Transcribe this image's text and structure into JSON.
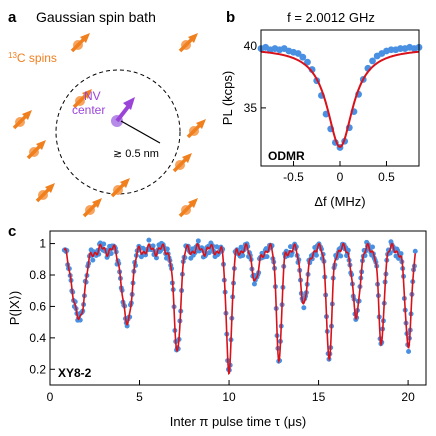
{
  "panels": {
    "a": {
      "letter": "a",
      "title": "Gaussian spin bath",
      "spins_label": "13C spins",
      "spins_label_sup": "13",
      "spins_label_rest": "C spins",
      "nv_label_line1": "NV",
      "nv_label_line2": "center",
      "radius_label": "≳ 0.5 nm",
      "colors": {
        "spin": "#F07F1E",
        "nv": "#9B45D8"
      }
    },
    "b": {
      "letter": "b",
      "annotation": "ODMR"
    },
    "c": {
      "letter": "c",
      "annotation": "XY8-2"
    }
  },
  "chart_data": [
    {
      "panel": "b",
      "type": "scatter",
      "title": "f = 2.0012 GHz",
      "xlabel": "Δf (MHz)",
      "ylabel": "PL (kcps)",
      "xlim": [
        -0.85,
        0.85
      ],
      "ylim": [
        30.3,
        41.3
      ],
      "xticks": [
        -0.5,
        0,
        0.5
      ],
      "xtick_labels": [
        "-0.5",
        "0",
        "0.5"
      ],
      "yticks": [
        35,
        40
      ],
      "ytick_labels": [
        "35",
        "40"
      ],
      "series": [
        {
          "kind": "points",
          "color": "#4A90E2",
          "x": [
            -0.85,
            -0.8,
            -0.75,
            -0.7,
            -0.65,
            -0.6,
            -0.55,
            -0.5,
            -0.45,
            -0.4,
            -0.35,
            -0.3,
            -0.25,
            -0.2,
            -0.15,
            -0.1,
            -0.05,
            0.0,
            0.05,
            0.1,
            0.15,
            0.2,
            0.25,
            0.3,
            0.35,
            0.4,
            0.45,
            0.5,
            0.55,
            0.6,
            0.65,
            0.7,
            0.75,
            0.8,
            0.85
          ],
          "y": [
            39.8,
            39.9,
            39.7,
            39.8,
            39.7,
            39.8,
            39.6,
            39.5,
            39.4,
            39.1,
            38.7,
            38.1,
            37.2,
            36.0,
            34.5,
            33.3,
            32.2,
            31.8,
            32.3,
            33.4,
            34.7,
            36.1,
            37.3,
            38.2,
            38.8,
            39.2,
            39.4,
            39.6,
            39.7,
            39.7,
            39.8,
            39.8,
            39.9,
            39.8,
            39.9
          ]
        },
        {
          "kind": "fit",
          "color": "#D8121B",
          "model": "lorentzian",
          "baseline": 39.85,
          "depth": 8.0,
          "center": 0.0,
          "hwhm": 0.17
        }
      ]
    },
    {
      "panel": "c",
      "type": "line",
      "xlabel": "Inter π pulse time τ (μs)",
      "ylabel": "P(|X⟩)",
      "xlim": [
        0,
        21
      ],
      "ylim": [
        0.1,
        1.08
      ],
      "xticks": [
        0,
        5,
        10,
        15,
        20
      ],
      "xtick_labels": [
        "0",
        "5",
        "10",
        "15",
        "20"
      ],
      "yticks": [
        0.2,
        0.4,
        0.6,
        0.8,
        1.0
      ],
      "ytick_labels": [
        "0.2",
        "0.4",
        "0.6",
        "0.8",
        "1"
      ],
      "dips": [
        {
          "center": 1.6,
          "depth": 0.45,
          "width": 0.45
        },
        {
          "center": 4.3,
          "depth": 0.48,
          "width": 0.35
        },
        {
          "center": 7.1,
          "depth": 0.65,
          "width": 0.25
        },
        {
          "center": 10.0,
          "depth": 0.75,
          "width": 0.22
        },
        {
          "center": 11.5,
          "depth": 0.2,
          "width": 0.25
        },
        {
          "center": 12.8,
          "depth": 0.7,
          "width": 0.2
        },
        {
          "center": 14.2,
          "depth": 0.35,
          "width": 0.25
        },
        {
          "center": 15.6,
          "depth": 0.72,
          "width": 0.2
        },
        {
          "center": 17.1,
          "depth": 0.45,
          "width": 0.25
        },
        {
          "center": 18.5,
          "depth": 0.62,
          "width": 0.2
        },
        {
          "center": 20.0,
          "depth": 0.6,
          "width": 0.25
        }
      ],
      "baseline": 0.96,
      "point_color": "#4A90E2",
      "fit_color": "#D8121B"
    }
  ]
}
